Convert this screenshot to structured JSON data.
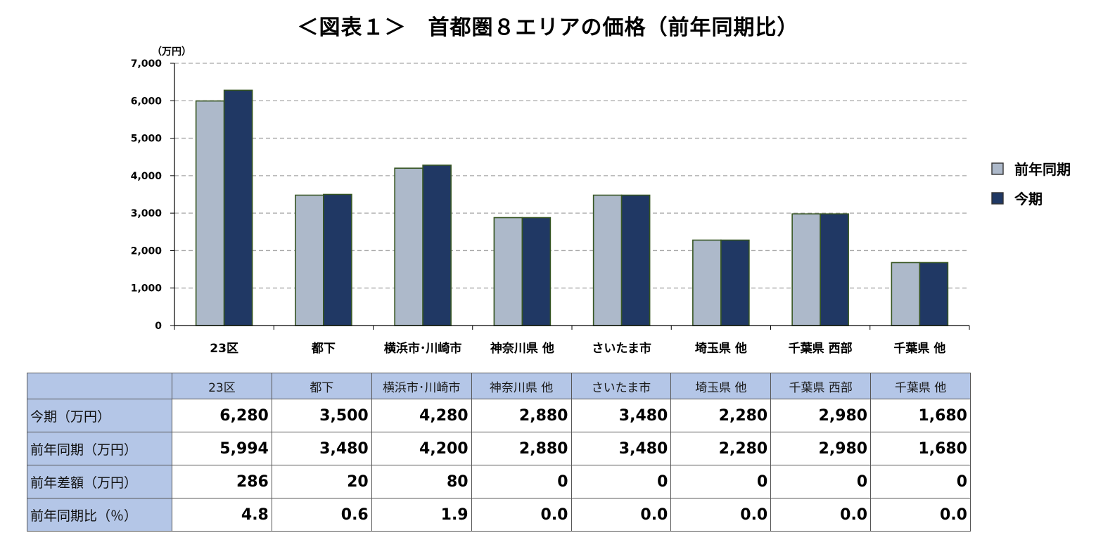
{
  "chart_data": {
    "type": "bar",
    "title": "＜図表１＞　首都圏８エリアの価格（前年同期比）",
    "unit_label": "（万円）",
    "categories": [
      "23区",
      "都下",
      "横浜市･川崎市",
      "神奈川県 他",
      "さいたま市",
      "埼玉県 他",
      "千葉県 西部",
      "千葉県 他"
    ],
    "series": [
      {
        "name": "前年同期",
        "color": "#adb9ca",
        "values": [
          5994,
          3480,
          4200,
          2880,
          3480,
          2280,
          2980,
          1680
        ]
      },
      {
        "name": "今期",
        "color": "#203864",
        "values": [
          6280,
          3500,
          4280,
          2880,
          3480,
          2280,
          2980,
          1680
        ]
      }
    ],
    "ylim": [
      0,
      7000
    ],
    "yticks": [
      0,
      1000,
      2000,
      3000,
      4000,
      5000,
      6000,
      7000
    ],
    "ytick_labels": [
      "0",
      "1,000",
      "2,000",
      "3,000",
      "4,000",
      "5,000",
      "6,000",
      "7,000"
    ],
    "grid": true,
    "legend_position": "right",
    "bar_edge_color": "#375623"
  },
  "table": {
    "headers": [
      "",
      "23区",
      "都下",
      "横浜市･川崎市",
      "神奈川県 他",
      "さいたま市",
      "埼玉県 他",
      "千葉県 西部",
      "千葉県 他"
    ],
    "rows": [
      {
        "label": "今期（万円）",
        "cells": [
          "6,280",
          "3,500",
          "4,280",
          "2,880",
          "3,480",
          "2,280",
          "2,980",
          "1,680"
        ]
      },
      {
        "label": "前年同期（万円）",
        "cells": [
          "5,994",
          "3,480",
          "4,200",
          "2,880",
          "3,480",
          "2,280",
          "2,980",
          "1,680"
        ]
      },
      {
        "label": "前年差額（万円）",
        "cells": [
          "286",
          "20",
          "80",
          "0",
          "0",
          "0",
          "0",
          "0"
        ]
      },
      {
        "label": "前年同期比（％）",
        "cells": [
          "4.8",
          "0.6",
          "1.9",
          "0.0",
          "0.0",
          "0.0",
          "0.0",
          "0.0"
        ]
      }
    ]
  }
}
